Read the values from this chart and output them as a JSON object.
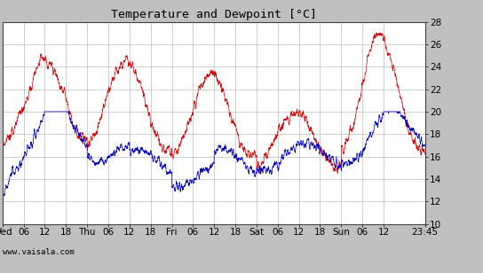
{
  "title": "Temperature and Dewpoint [°C]",
  "ylim": [
    10,
    28
  ],
  "yticks": [
    10,
    12,
    14,
    16,
    18,
    20,
    22,
    24,
    26,
    28
  ],
  "line_color_temp": "#dd0000",
  "line_color_dew": "#0000cc",
  "background_color": "#c0c0c0",
  "plot_bg_color": "#ffffff",
  "grid_color": "#bbbbbb",
  "watermark": "www.vaisala.com",
  "title_fontsize": 9.5,
  "tick_fontsize": 7.5,
  "watermark_fontsize": 6.5,
  "x_tick_labels": [
    "Wed",
    "06",
    "12",
    "18",
    "Thu",
    "06",
    "12",
    "18",
    "Fri",
    "06",
    "12",
    "18",
    "Sat",
    "06",
    "12",
    "18",
    "Sun",
    "06",
    "12",
    "23:45"
  ],
  "x_tick_positions": [
    0,
    6,
    12,
    18,
    24,
    30,
    36,
    42,
    48,
    54,
    60,
    66,
    72,
    78,
    84,
    90,
    96,
    102,
    108,
    119.75
  ],
  "x_total_hours": 119.75,
  "num_points": 2880,
  "line_width": 0.5
}
